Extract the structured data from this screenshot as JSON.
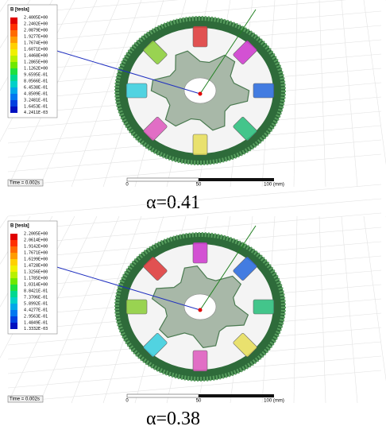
{
  "panels": [
    {
      "legend": {
        "title": "B [tesla]",
        "values": [
          "2.4005E+00",
          "2.2402E+00",
          "2.0879E+00",
          "1.9277E+00",
          "1.7674E+00",
          "1.6071E+00",
          "1.4468E+00",
          "1.2865E+00",
          "1.1262E+00",
          "9.6595E-01",
          "8.0566E-01",
          "6.4538E-01",
          "4.8509E-01",
          "3.2481E-01",
          "1.6453E-01",
          "4.2411E-03"
        ]
      },
      "time": "Time = 0.002s",
      "scale": [
        "0",
        "50",
        "100 (mm)"
      ],
      "caption": "α=0.41"
    },
    {
      "legend": {
        "title": "B [tesla]",
        "values": [
          "2.2005E+00",
          "2.0614E+00",
          "1.9142E+00",
          "1.7671E+00",
          "1.6199E+00",
          "1.4728E+00",
          "1.3256E+00",
          "1.1785E+00",
          "1.0314E+00",
          "8.8421E-01",
          "7.3706E-01",
          "5.8992E-01",
          "4.4277E-01",
          "2.9563E-01",
          "1.4849E-01",
          "1.3332E-03"
        ]
      },
      "time": "Time = 0.002s",
      "scale": [
        "0",
        "50",
        "100 (mm)"
      ],
      "caption": "α=0.38"
    }
  ]
}
